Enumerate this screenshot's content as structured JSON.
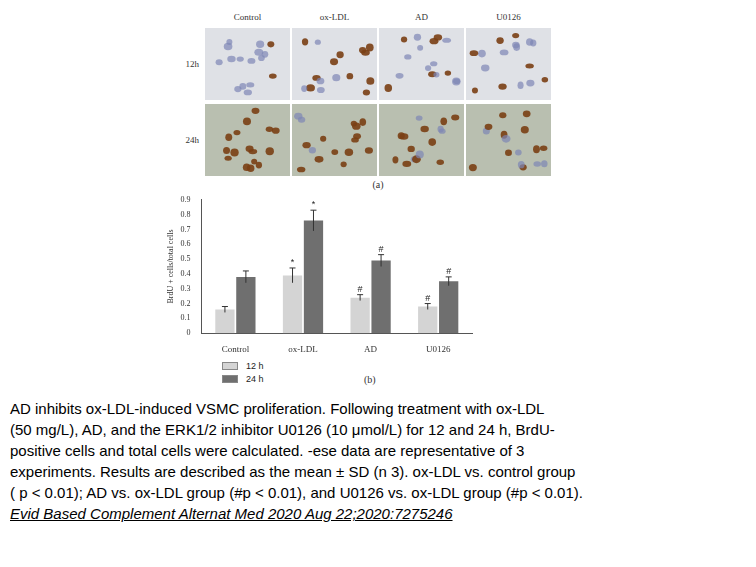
{
  "panel_a": {
    "label": "(a)",
    "columns": [
      "Control",
      "ox-LDL",
      "AD",
      "U0126"
    ],
    "rows": [
      "12h",
      "24h"
    ]
  },
  "chart_data": {
    "type": "bar",
    "panel_label": "(b)",
    "categories": [
      "Control",
      "ox-LDL",
      "AD",
      "U0126"
    ],
    "y_label": "BrdU + cells/total cells",
    "ylim": [
      0,
      0.9
    ],
    "yticks": [
      0,
      0.1,
      0.2,
      0.3,
      0.4,
      0.5,
      0.6,
      0.7,
      0.8,
      0.9
    ],
    "grid": false,
    "legend": "bottom-left",
    "series": [
      {
        "name": "12 h",
        "color": "#d4d4d4",
        "values": [
          0.16,
          0.39,
          0.24,
          0.18
        ],
        "errors": [
          0.02,
          0.05,
          0.02,
          0.02
        ],
        "annotations": [
          null,
          "*",
          "#",
          "#"
        ]
      },
      {
        "name": "24 h",
        "color": "#6f6f6f",
        "values": [
          0.38,
          0.76,
          0.49,
          0.35
        ],
        "errors": [
          0.04,
          0.07,
          0.04,
          0.03
        ],
        "annotations": [
          null,
          "*",
          "#",
          "#"
        ]
      }
    ]
  },
  "caption": {
    "lines": [
      "AD inhibits ox-LDL-induced VSMC proliferation. Following treatment with ox-LDL",
      "(50 mg/L), AD, and the ERK1/2 inhibitor U0126 (10 μmol/L) for 12 and 24 h, BrdU-",
      "positive cells and total cells were calculated. -ese data are representative of 3",
      "experiments. Results are described as the mean ± SD (n   3). ox-LDL vs. control group",
      "( p < 0.01); AD vs. ox-LDL group (#p < 0.01), and U0126 vs. ox-LDL group (#p < 0.01)."
    ],
    "citation": "Evid Based Complement Alternat Med 2020 Aug 22;2020:7275246"
  }
}
